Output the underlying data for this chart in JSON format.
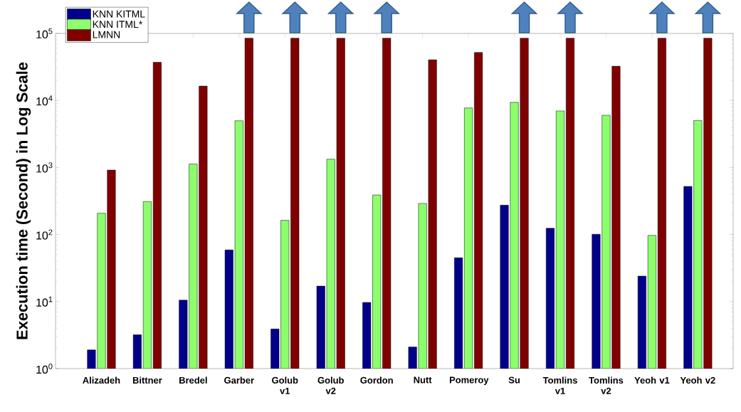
{
  "chart_data": {
    "type": "bar",
    "ylabel": "Execution time (Second) in Log Scale",
    "categories": [
      "Alizadeh",
      "Bittner",
      "Bredel",
      "Garber",
      "Golub v1",
      "Golub v2",
      "Gordon",
      "Nutt",
      "Pomeroy",
      "Su",
      "Tomlins v1",
      "Tomlins v2",
      "Yeoh v1",
      "Yeoh v2"
    ],
    "series": [
      {
        "name": "KNN KITML",
        "color": "#00008b",
        "values": [
          1.9,
          3.2,
          10.5,
          59,
          3.9,
          17,
          9.7,
          2.1,
          45,
          274,
          124,
          101,
          24,
          522
        ]
      },
      {
        "name": "KNN ITML*",
        "color": "#8cff6c",
        "values": [
          208,
          310,
          1130,
          4980,
          163,
          1330,
          389,
          291,
          7740,
          9380,
          6980,
          6010,
          97,
          5030
        ]
      },
      {
        "name": "LMNN",
        "color": "#800000",
        "values": [
          916,
          37100,
          16400,
          85000,
          85000,
          85000,
          85000,
          40400,
          52000,
          85000,
          85000,
          32400,
          85000,
          85000
        ]
      }
    ],
    "log": "y",
    "ylim": [
      1,
      100000
    ],
    "yticks": [
      {
        "value": 1,
        "label": "10$^{0}$"
      },
      {
        "value": 10,
        "label": "10$^{1}$"
      },
      {
        "value": 100,
        "label": "10$^{2}$"
      },
      {
        "value": 1000,
        "label": "10$^{3}$"
      },
      {
        "value": 10000,
        "label": "10$^{4}$"
      },
      {
        "value": 100000,
        "label": "10$^{5}$"
      }
    ],
    "legend": "top left"
  }
}
